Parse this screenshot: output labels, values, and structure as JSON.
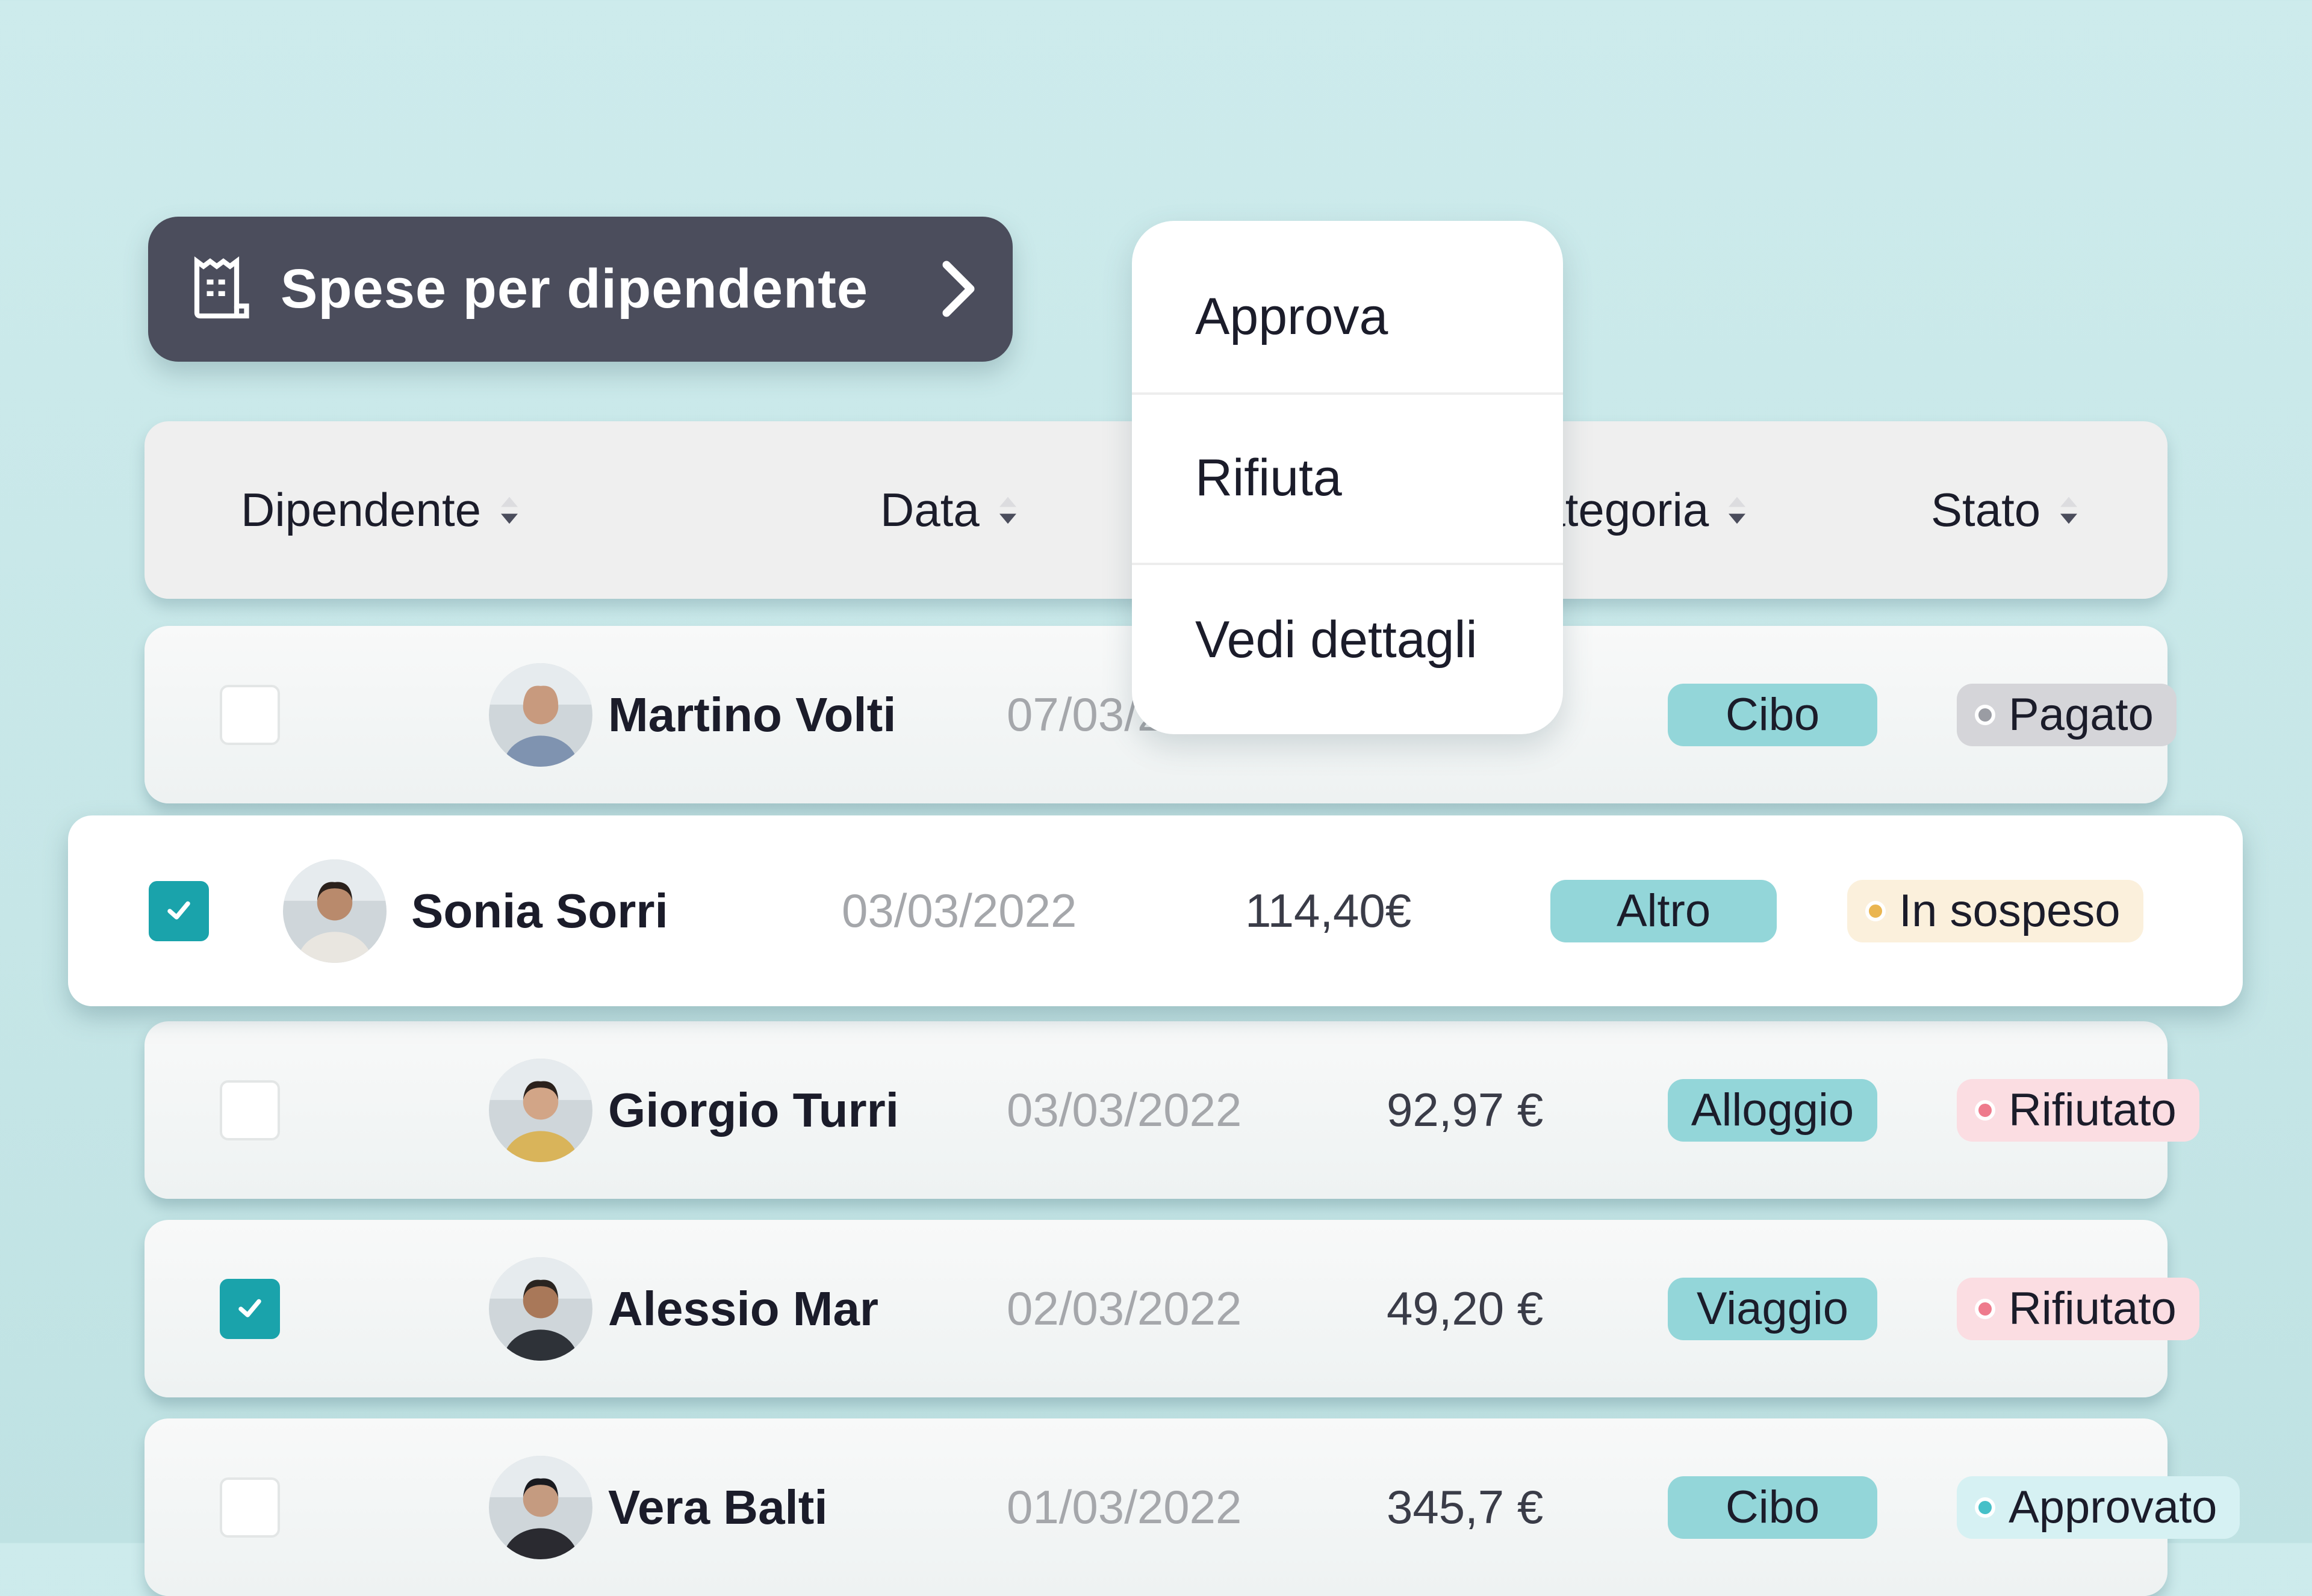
{
  "title_button": {
    "label": "Spese per dipendente",
    "icon": "receipt-icon",
    "chevron": "chevron-right-icon",
    "bg": "#4b4d5c"
  },
  "header": {
    "columns": [
      {
        "label": "Dipendente"
      },
      {
        "label": "Data"
      },
      {
        "label": "Categoria"
      },
      {
        "label": "Stato"
      }
    ]
  },
  "context_menu": {
    "items": [
      {
        "label": "Approva"
      },
      {
        "label": "Rifiuta"
      },
      {
        "label": "Vedi dettagli"
      }
    ]
  },
  "rows": [
    {
      "name": "Martino Volti",
      "date": "07/03/2022",
      "amount": "",
      "category": "Cibo",
      "status": "Pagato",
      "checked": false
    },
    {
      "name": "Sonia Sorri",
      "date": "03/03/2022",
      "amount": "114,40€",
      "category": "Altro",
      "status": "In sospeso",
      "checked": true
    },
    {
      "name": "Giorgio Turri",
      "date": "03/03/2022",
      "amount": "92,97 €",
      "category": "Alloggio",
      "status": "Rifiutato",
      "checked": false
    },
    {
      "name": "Alessio Mar",
      "date": "02/03/2022",
      "amount": "49,20 €",
      "category": "Viaggio",
      "status": "Rifiutato",
      "checked": true
    },
    {
      "name": "Vera Balti",
      "date": "01/03/2022",
      "amount": "345,7 €",
      "category": "Cibo",
      "status": "Approvato",
      "checked": false
    }
  ],
  "colors": {
    "accent": "#1aa3ab",
    "category_pill": "#93d6d9",
    "status_paid_bg": "#d5d5d9",
    "status_paid_dot": "#9a9ca3",
    "status_pending_bg": "#fbf0dc",
    "status_pending_dot": "#eab550",
    "status_rejected_bg": "#fbdde2",
    "status_rejected_dot": "#ee7b8d",
    "status_approved_bg": "#d6f1f3",
    "status_approved_dot": "#46c0c8"
  }
}
